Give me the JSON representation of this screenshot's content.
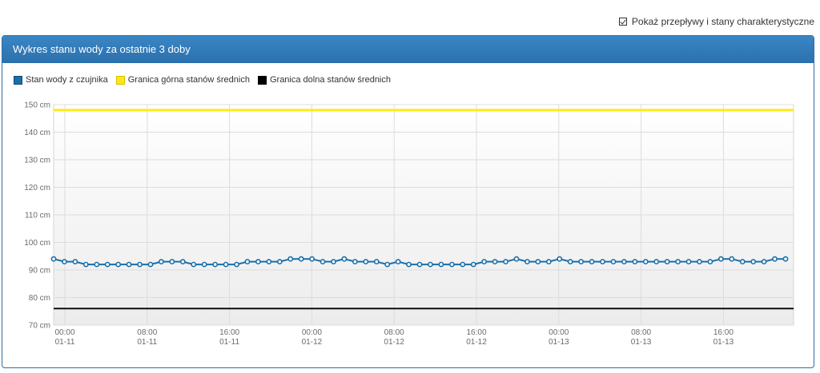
{
  "toggle": {
    "label": "Pokaż przepływy i stany charakterystyczne",
    "checked": true
  },
  "panel": {
    "title": "Wykres stanu wody za ostatnie 3 doby"
  },
  "legend": [
    {
      "label": "Stan wody z czujnika",
      "color": "#1a6fa8"
    },
    {
      "label": "Granica górna stanów średnich",
      "color": "#ffe81a"
    },
    {
      "label": "Granica dolna stanów średnich",
      "color": "#000000"
    }
  ],
  "chart_data": {
    "type": "line",
    "xlabel": "",
    "ylabel": "",
    "ylim": [
      70,
      150
    ],
    "y_ticks": [
      "70 cm",
      "80 cm",
      "90 cm",
      "100 cm",
      "110 cm",
      "120 cm",
      "130 cm",
      "140 cm",
      "150 cm"
    ],
    "x_ticks": [
      {
        "time": "00:00",
        "date": "01-11"
      },
      {
        "time": "08:00",
        "date": "01-11"
      },
      {
        "time": "16:00",
        "date": "01-11"
      },
      {
        "time": "00:00",
        "date": "01-12"
      },
      {
        "time": "08:00",
        "date": "01-12"
      },
      {
        "time": "16:00",
        "date": "01-12"
      },
      {
        "time": "00:00",
        "date": "01-13"
      },
      {
        "time": "08:00",
        "date": "01-13"
      },
      {
        "time": "16:00",
        "date": "01-13"
      }
    ],
    "grid": true,
    "series": [
      {
        "name": "Stan wody z czujnika",
        "color": "#1a6fa8",
        "values": [
          94,
          93,
          93,
          92,
          92,
          92,
          92,
          92,
          92,
          92,
          93,
          93,
          93,
          92,
          92,
          92,
          92,
          92,
          93,
          93,
          93,
          93,
          94,
          94,
          94,
          93,
          93,
          94,
          93,
          93,
          93,
          92,
          93,
          92,
          92,
          92,
          92,
          92,
          92,
          92,
          93,
          93,
          93,
          94,
          93,
          93,
          93,
          94,
          93,
          93,
          93,
          93,
          93,
          93,
          93,
          93,
          93,
          93,
          93,
          93,
          93,
          93,
          94,
          94,
          93,
          93,
          93,
          94,
          94
        ]
      },
      {
        "name": "Granica górna stanów średnich",
        "color": "#ffe81a",
        "values": [
          148
        ]
      },
      {
        "name": "Granica dolna stanów średnich",
        "color": "#000000",
        "values": [
          76
        ]
      }
    ]
  }
}
